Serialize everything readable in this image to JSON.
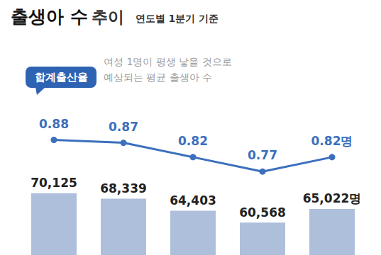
{
  "chart_data": {
    "type": "bar",
    "title": "출생아 수 추이",
    "subtitle": "연도별 1분기 기준",
    "note": [
      "여성 1명이 평생 낳을 것으로",
      "예상되는 평균 출생아 수"
    ],
    "categories": [
      null,
      null,
      null,
      null,
      null
    ],
    "series": [
      {
        "name": "출생아 수",
        "type": "bar",
        "color": "#aebfdc",
        "values": [
          70125,
          68339,
          64403,
          60568,
          65022
        ],
        "value_labels": [
          "70,125",
          "68,339",
          "64,403",
          "60,568",
          "65,022명"
        ]
      },
      {
        "name": "합계출산율",
        "type": "line",
        "axis": "y2",
        "color": "#3c6fbd",
        "marker": "circle",
        "values": [
          0.88,
          0.87,
          0.82,
          0.77,
          0.82
        ],
        "value_labels": [
          "0.88",
          "0.87",
          "0.82",
          "0.77",
          "0.82명"
        ]
      }
    ],
    "ylim": [
      50000,
      110000
    ],
    "yticks": [
      50000,
      110000
    ],
    "y2lim": [
      0.48,
      1.12
    ],
    "y2ticks": [
      0.48,
      1.12
    ],
    "data_labels": true,
    "tick_labels": false,
    "grid": false
  }
}
